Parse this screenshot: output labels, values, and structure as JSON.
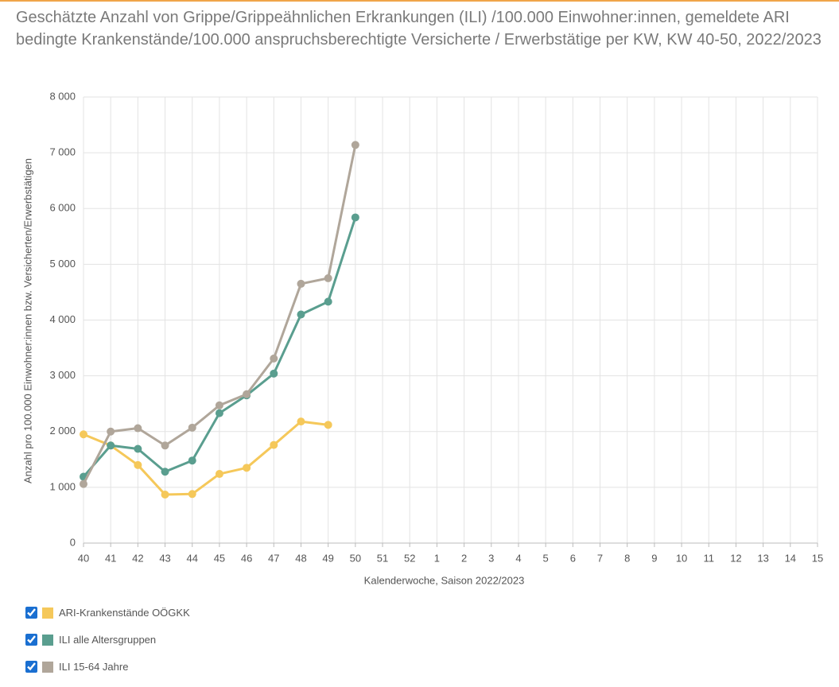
{
  "chart_data": {
    "type": "line",
    "title": "Geschätzte Anzahl von Grippe/Grippeähnlichen Erkrankungen (ILI) /100.000 Einwohner:innen, gemeldete ARI bedingte Krankenstände/100.000 anspruchsberechtigte Versicherte / Erwerbstätige per KW, KW 40-50, 2022/2023",
    "x_label": "Kalenderwoche, Saison 2022/2023",
    "y_label": "Anzahl pro 100.000 Einwohner:innen bzw. Versicherten/Erwerbstätigen",
    "categories": [
      "40",
      "41",
      "42",
      "43",
      "44",
      "45",
      "46",
      "47",
      "48",
      "49",
      "50",
      "51",
      "52",
      "1",
      "2",
      "3",
      "4",
      "5",
      "6",
      "7",
      "8",
      "9",
      "10",
      "11",
      "12",
      "13",
      "14",
      "15"
    ],
    "series": [
      {
        "name": "ARI-Krankenstände OÖGKK",
        "color": "#f5c85a",
        "values": [
          1950,
          1750,
          1400,
          870,
          880,
          1240,
          1350,
          1760,
          2180,
          2120,
          null,
          null,
          null,
          null,
          null,
          null,
          null,
          null,
          null,
          null,
          null,
          null,
          null,
          null,
          null,
          null,
          null,
          null
        ]
      },
      {
        "name": "ILI alle Altersgruppen",
        "color": "#5a9e8f",
        "values": [
          1190,
          1750,
          1690,
          1280,
          1480,
          2330,
          2650,
          3040,
          4100,
          4330,
          5840,
          null,
          null,
          null,
          null,
          null,
          null,
          null,
          null,
          null,
          null,
          null,
          null,
          null,
          null,
          null,
          null,
          null
        ]
      },
      {
        "name": "ILI 15-64 Jahre",
        "color": "#b0a69a",
        "values": [
          1060,
          2000,
          2060,
          1750,
          2070,
          2470,
          2670,
          3310,
          4650,
          4750,
          7140,
          null,
          null,
          null,
          null,
          null,
          null,
          null,
          null,
          null,
          null,
          null,
          null,
          null,
          null,
          null,
          null,
          null
        ]
      }
    ],
    "ylim": [
      0,
      8000
    ],
    "yticks": [
      0,
      {
        "value": 1000,
        "label": "1 000"
      },
      {
        "value": 2000,
        "label": "2 000"
      },
      {
        "value": 3000,
        "label": "3 000"
      },
      {
        "value": 4000,
        "label": "4 000"
      },
      {
        "value": 5000,
        "label": "5 000"
      },
      {
        "value": 6000,
        "label": "6 000"
      },
      {
        "value": 7000,
        "label": "7 000"
      },
      {
        "value": 8000,
        "label": "8 000"
      }
    ],
    "grid": true
  }
}
